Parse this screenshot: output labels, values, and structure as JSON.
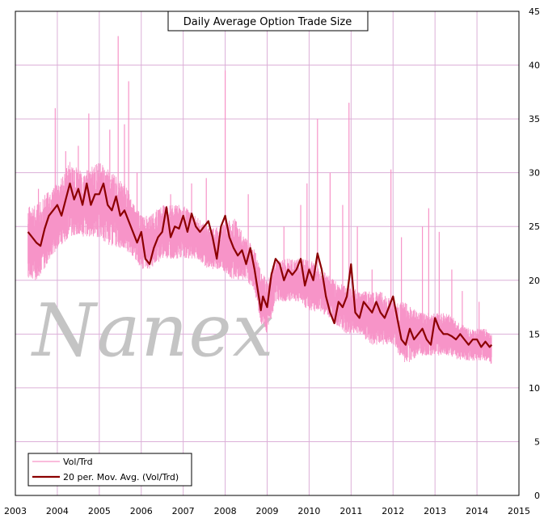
{
  "chart_data": {
    "type": "line",
    "title": "Daily Average Option Trade Size",
    "xlabel": "",
    "ylabel": "",
    "xlim": [
      2003,
      2015
    ],
    "ylim": [
      0,
      45
    ],
    "x_ticks": [
      "2003",
      "2004",
      "2005",
      "2006",
      "2007",
      "2008",
      "2009",
      "2010",
      "2011",
      "2012",
      "2013",
      "2014",
      "2015"
    ],
    "y_ticks": [
      "0",
      "5",
      "10",
      "15",
      "20",
      "25",
      "30",
      "35",
      "40",
      "45"
    ],
    "grid": true,
    "legend_position": "bottom-left",
    "watermark": "Nanex",
    "series": [
      {
        "name": "Vol/Trd",
        "color": "#f794c8",
        "style": "daily",
        "band": {
          "x": [
            2003.3,
            2003.5,
            2003.7,
            2004.0,
            2004.3,
            2004.6,
            2005.0,
            2005.3,
            2005.6,
            2006.0,
            2006.2,
            2006.5,
            2006.8,
            2007.0,
            2007.3,
            2007.6,
            2007.9,
            2008.2,
            2008.5,
            2008.7,
            2008.85,
            2009.0,
            2009.2,
            2009.5,
            2009.8,
            2010.0,
            2010.3,
            2010.6,
            2010.9,
            2011.2,
            2011.5,
            2011.8,
            2012.0,
            2012.3,
            2012.6,
            2012.9,
            2013.0,
            2013.3,
            2013.6,
            2013.9,
            2014.2,
            2014.35
          ],
          "low": [
            20,
            20,
            21,
            23,
            24,
            24,
            24,
            23,
            23,
            21,
            21,
            22,
            22,
            22,
            22,
            21,
            21,
            20,
            20,
            19,
            16,
            15,
            18,
            18,
            18,
            17,
            17,
            16,
            15,
            15,
            14,
            14,
            14,
            12,
            13,
            13,
            13,
            13,
            12.5,
            12.5,
            12.5,
            12
          ],
          "high": [
            27,
            27,
            28,
            29,
            31,
            30,
            31,
            30,
            29,
            26,
            26,
            27,
            27,
            27,
            26,
            25,
            25,
            26,
            24,
            23,
            21,
            20,
            22,
            22,
            22,
            22,
            21,
            20,
            19.5,
            19,
            19,
            19,
            18,
            18,
            17,
            17,
            17,
            17,
            16,
            15.5,
            15.5,
            15
          ]
        },
        "spikes": [
          {
            "x": 2003.55,
            "y": 28.5
          },
          {
            "x": 2003.95,
            "y": 36
          },
          {
            "x": 2004.2,
            "y": 32
          },
          {
            "x": 2004.5,
            "y": 32.5
          },
          {
            "x": 2004.75,
            "y": 35.5
          },
          {
            "x": 2005.05,
            "y": 30
          },
          {
            "x": 2005.25,
            "y": 34
          },
          {
            "x": 2005.45,
            "y": 42.7
          },
          {
            "x": 2005.6,
            "y": 34.5
          },
          {
            "x": 2005.7,
            "y": 38.5
          },
          {
            "x": 2005.9,
            "y": 30
          },
          {
            "x": 2006.05,
            "y": 19
          },
          {
            "x": 2006.7,
            "y": 28
          },
          {
            "x": 2007.2,
            "y": 29
          },
          {
            "x": 2007.55,
            "y": 29.5
          },
          {
            "x": 2007.75,
            "y": 20
          },
          {
            "x": 2008.0,
            "y": 39.5
          },
          {
            "x": 2008.55,
            "y": 28
          },
          {
            "x": 2008.72,
            "y": 17
          },
          {
            "x": 2008.85,
            "y": 14
          },
          {
            "x": 2008.92,
            "y": 9.6
          },
          {
            "x": 2009.05,
            "y": 15
          },
          {
            "x": 2009.4,
            "y": 25
          },
          {
            "x": 2009.8,
            "y": 27
          },
          {
            "x": 2009.95,
            "y": 29
          },
          {
            "x": 2010.2,
            "y": 35
          },
          {
            "x": 2010.5,
            "y": 30
          },
          {
            "x": 2010.8,
            "y": 27
          },
          {
            "x": 2010.95,
            "y": 36.5
          },
          {
            "x": 2011.15,
            "y": 25
          },
          {
            "x": 2011.5,
            "y": 21
          },
          {
            "x": 2011.95,
            "y": 30.3
          },
          {
            "x": 2012.2,
            "y": 24
          },
          {
            "x": 2012.7,
            "y": 25
          },
          {
            "x": 2012.85,
            "y": 26.7
          },
          {
            "x": 2013.1,
            "y": 24.5
          },
          {
            "x": 2013.4,
            "y": 21
          },
          {
            "x": 2013.65,
            "y": 19
          },
          {
            "x": 2014.05,
            "y": 18
          }
        ]
      },
      {
        "name": "20 per. Mov. Avg. (Vol/Trd)",
        "color": "#8b0000",
        "style": "line",
        "x": [
          2003.3,
          2003.4,
          2003.5,
          2003.6,
          2003.7,
          2003.8,
          2003.9,
          2004.0,
          2004.1,
          2004.2,
          2004.3,
          2004.4,
          2004.5,
          2004.6,
          2004.7,
          2004.8,
          2004.9,
          2005.0,
          2005.1,
          2005.2,
          2005.3,
          2005.4,
          2005.5,
          2005.6,
          2005.7,
          2005.8,
          2005.9,
          2006.0,
          2006.1,
          2006.2,
          2006.3,
          2006.4,
          2006.5,
          2006.6,
          2006.7,
          2006.8,
          2006.9,
          2007.0,
          2007.1,
          2007.2,
          2007.3,
          2007.4,
          2007.5,
          2007.6,
          2007.7,
          2007.8,
          2007.9,
          2008.0,
          2008.1,
          2008.2,
          2008.3,
          2008.4,
          2008.5,
          2008.6,
          2008.7,
          2008.8,
          2008.85,
          2008.9,
          2009.0,
          2009.1,
          2009.2,
          2009.3,
          2009.4,
          2009.5,
          2009.6,
          2009.7,
          2009.8,
          2009.9,
          2010.0,
          2010.1,
          2010.2,
          2010.3,
          2010.4,
          2010.5,
          2010.6,
          2010.7,
          2010.8,
          2010.9,
          2011.0,
          2011.1,
          2011.2,
          2011.3,
          2011.4,
          2011.5,
          2011.6,
          2011.7,
          2011.8,
          2011.9,
          2012.0,
          2012.1,
          2012.2,
          2012.3,
          2012.4,
          2012.5,
          2012.6,
          2012.7,
          2012.8,
          2012.9,
          2013.0,
          2013.1,
          2013.2,
          2013.3,
          2013.4,
          2013.5,
          2013.6,
          2013.7,
          2013.8,
          2013.9,
          2014.0,
          2014.1,
          2014.2,
          2014.3,
          2014.35
        ],
        "y": [
          24.5,
          24.0,
          23.5,
          23.2,
          24.8,
          26.0,
          26.5,
          27.0,
          26.0,
          27.5,
          29.0,
          27.5,
          28.5,
          27.0,
          29.0,
          27.0,
          28.0,
          28.0,
          29.0,
          27.0,
          26.5,
          27.8,
          26.0,
          26.5,
          25.5,
          24.5,
          23.5,
          24.5,
          22.0,
          21.5,
          23.0,
          24.0,
          24.5,
          26.8,
          24.0,
          25.0,
          24.8,
          26.0,
          24.5,
          26.2,
          25.0,
          24.5,
          25.0,
          25.5,
          24.0,
          22.0,
          25.0,
          26.0,
          24.0,
          23.0,
          22.3,
          22.8,
          21.5,
          23.0,
          21.0,
          18.5,
          17.2,
          18.5,
          17.5,
          20.5,
          22.0,
          21.5,
          20.0,
          21.0,
          20.5,
          21.0,
          22.0,
          19.5,
          21.0,
          20.0,
          22.5,
          21.0,
          18.5,
          17.0,
          16.0,
          18.0,
          17.5,
          18.5,
          21.5,
          17.0,
          16.5,
          18.0,
          17.5,
          17.0,
          18.0,
          17.0,
          16.5,
          17.5,
          18.5,
          16.5,
          14.5,
          14.0,
          15.5,
          14.5,
          15.0,
          15.5,
          14.5,
          14.0,
          16.5,
          15.5,
          15.0,
          15.0,
          14.8,
          14.5,
          15.0,
          14.5,
          14.0,
          14.5,
          14.5,
          13.8,
          14.3,
          13.8,
          14.0
        ]
      }
    ]
  }
}
